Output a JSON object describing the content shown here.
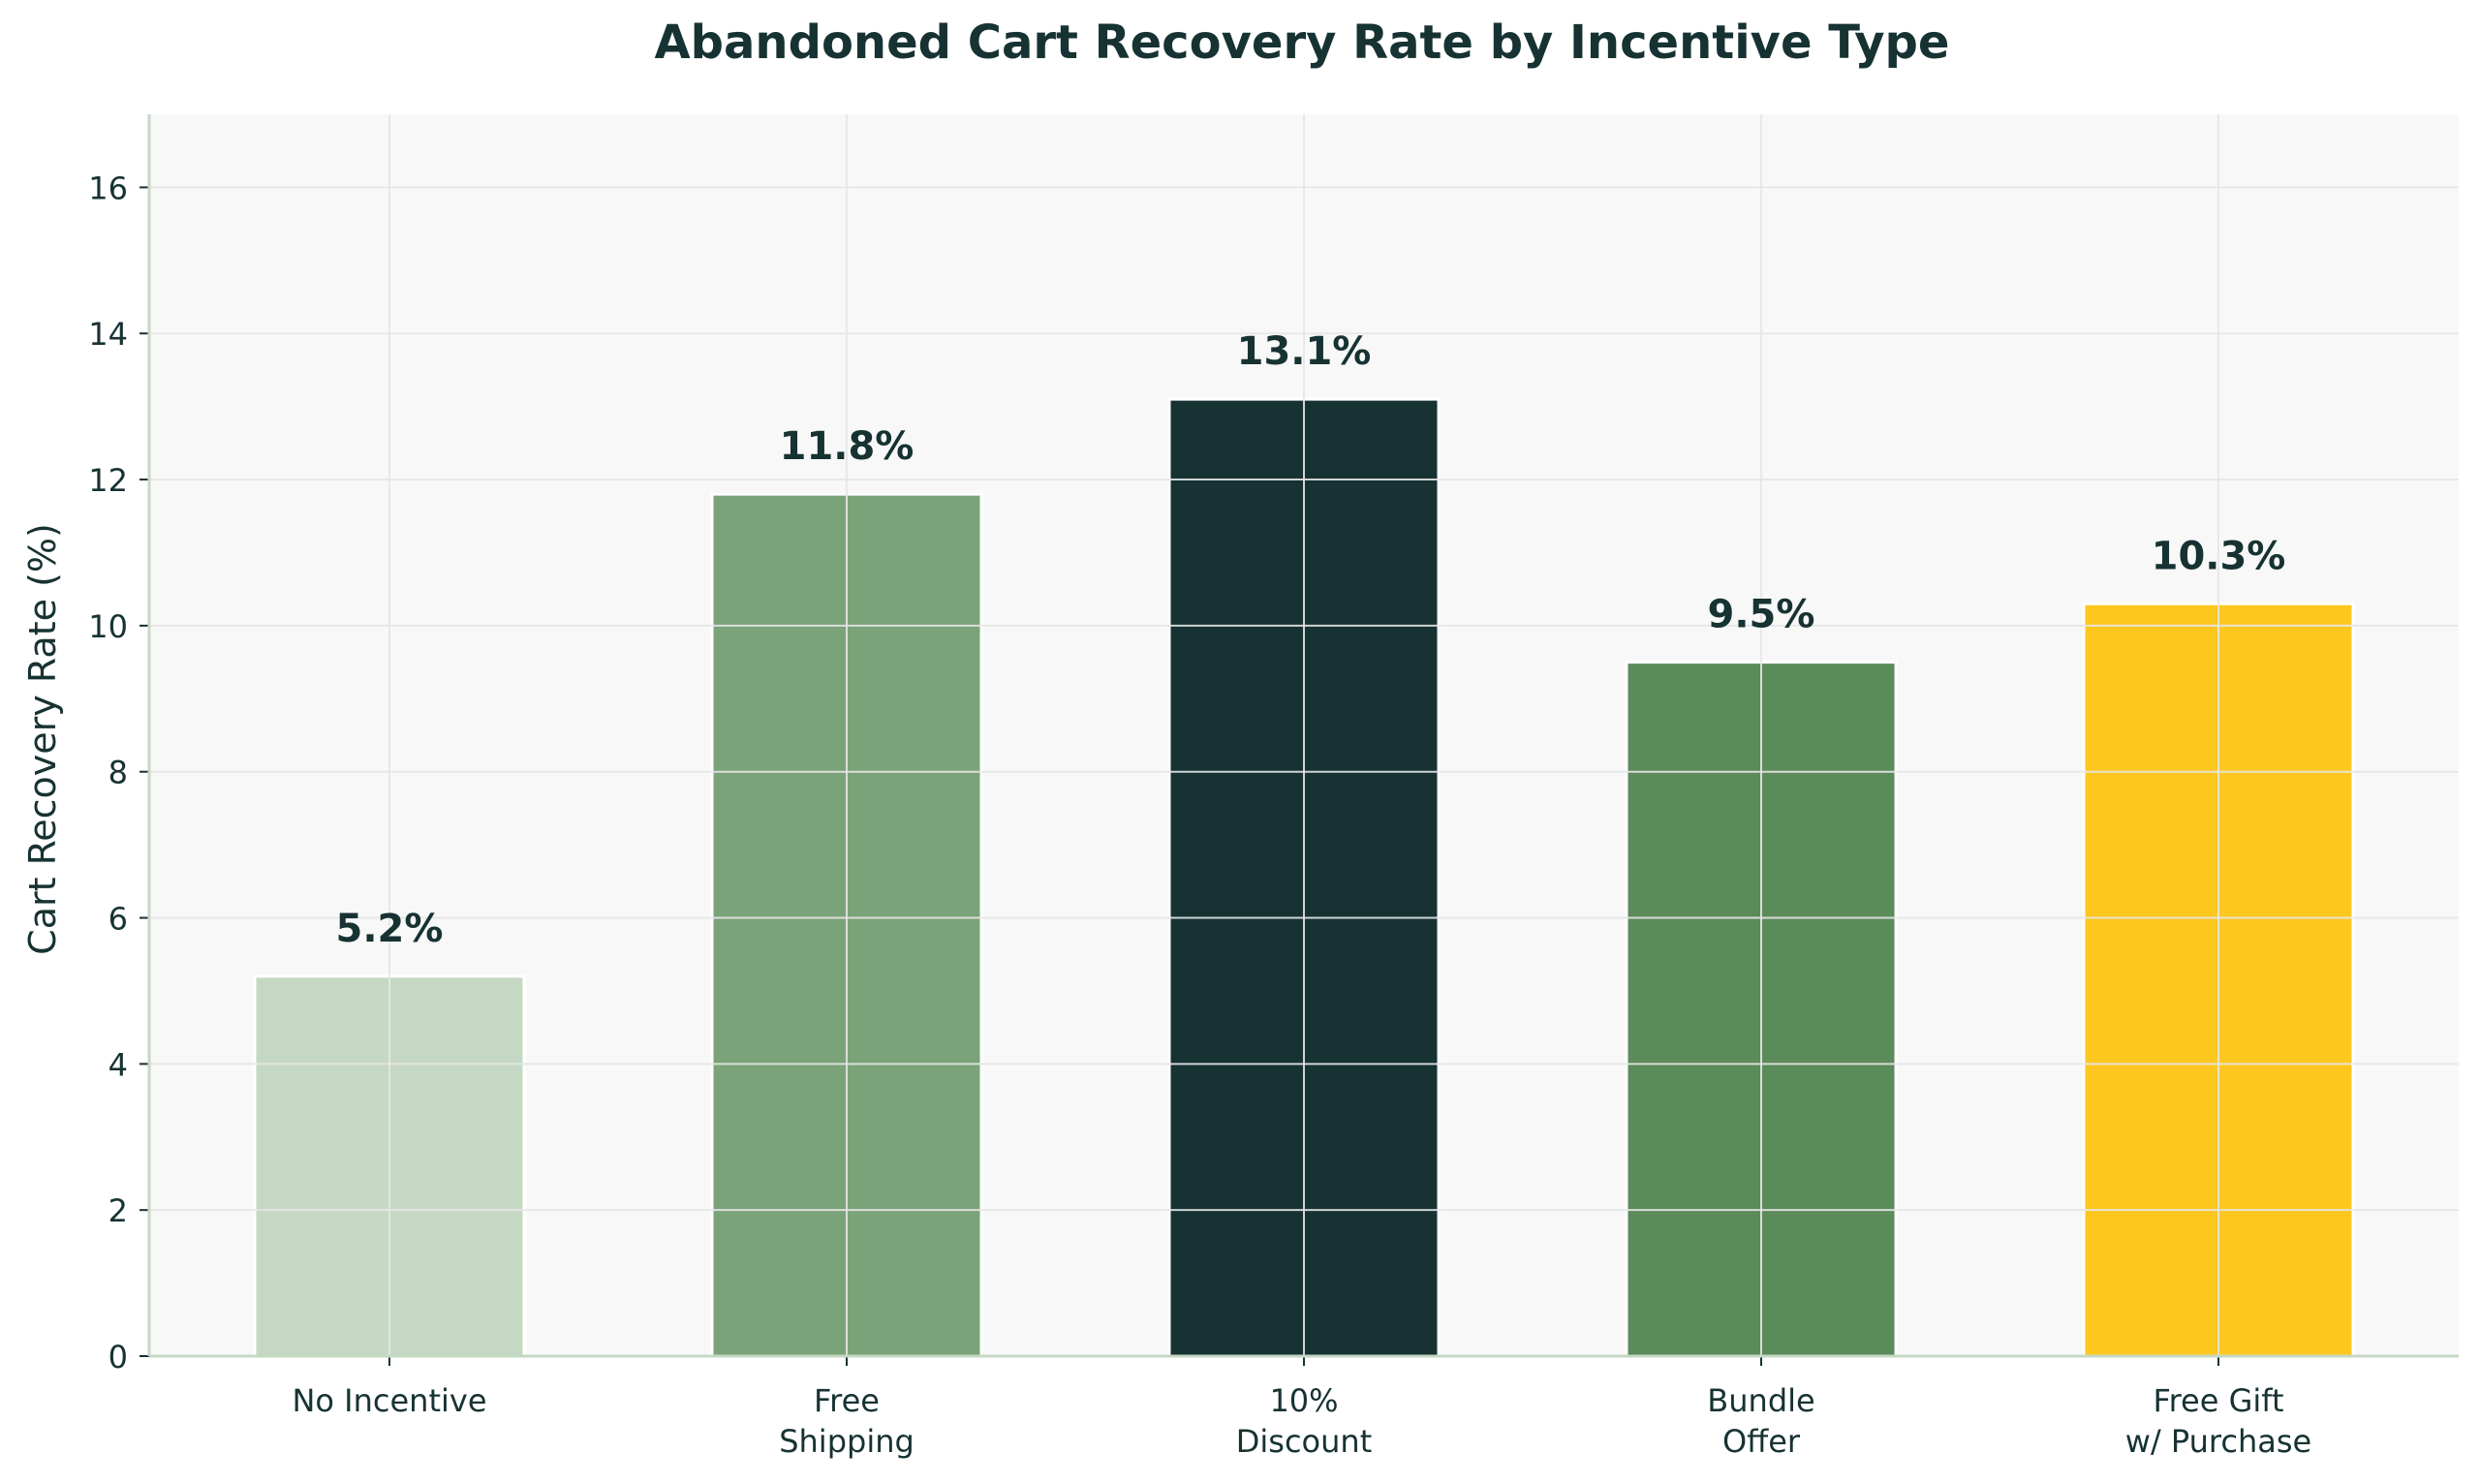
{
  "chart_data": {
    "type": "bar",
    "title": "Abandoned Cart Recovery Rate by Incentive Type",
    "xlabel": "",
    "ylabel": "Cart Recovery Rate (%)",
    "ylim": [
      0,
      17
    ],
    "yticks": [
      0,
      2,
      4,
      6,
      8,
      10,
      12,
      14,
      16
    ],
    "ytick_labels": [
      "0",
      "2",
      "4",
      "6",
      "8",
      "10",
      "12",
      "14",
      "16"
    ],
    "grid": true,
    "categories": [
      [
        "No Incentive"
      ],
      [
        "Free",
        "Shipping"
      ],
      [
        "10%",
        "Discount"
      ],
      [
        "Bundle",
        "Offer"
      ],
      [
        "Free Gift",
        "w/ Purchase"
      ]
    ],
    "values": [
      5.2,
      11.8,
      13.1,
      9.5,
      10.3
    ],
    "data_labels": [
      "5.2%",
      "11.8%",
      "13.1%",
      "9.5%",
      "10.3%"
    ],
    "colors": [
      "#c5d8c3",
      "#7aa379",
      "#173233",
      "#5b8a5b",
      "#fdc720"
    ],
    "title_color": "#173233",
    "text_color": "#173233",
    "plot_background": "#f8f8f8",
    "grid_color": "#e6e6e6",
    "axis_color": "#c5d8c3"
  }
}
